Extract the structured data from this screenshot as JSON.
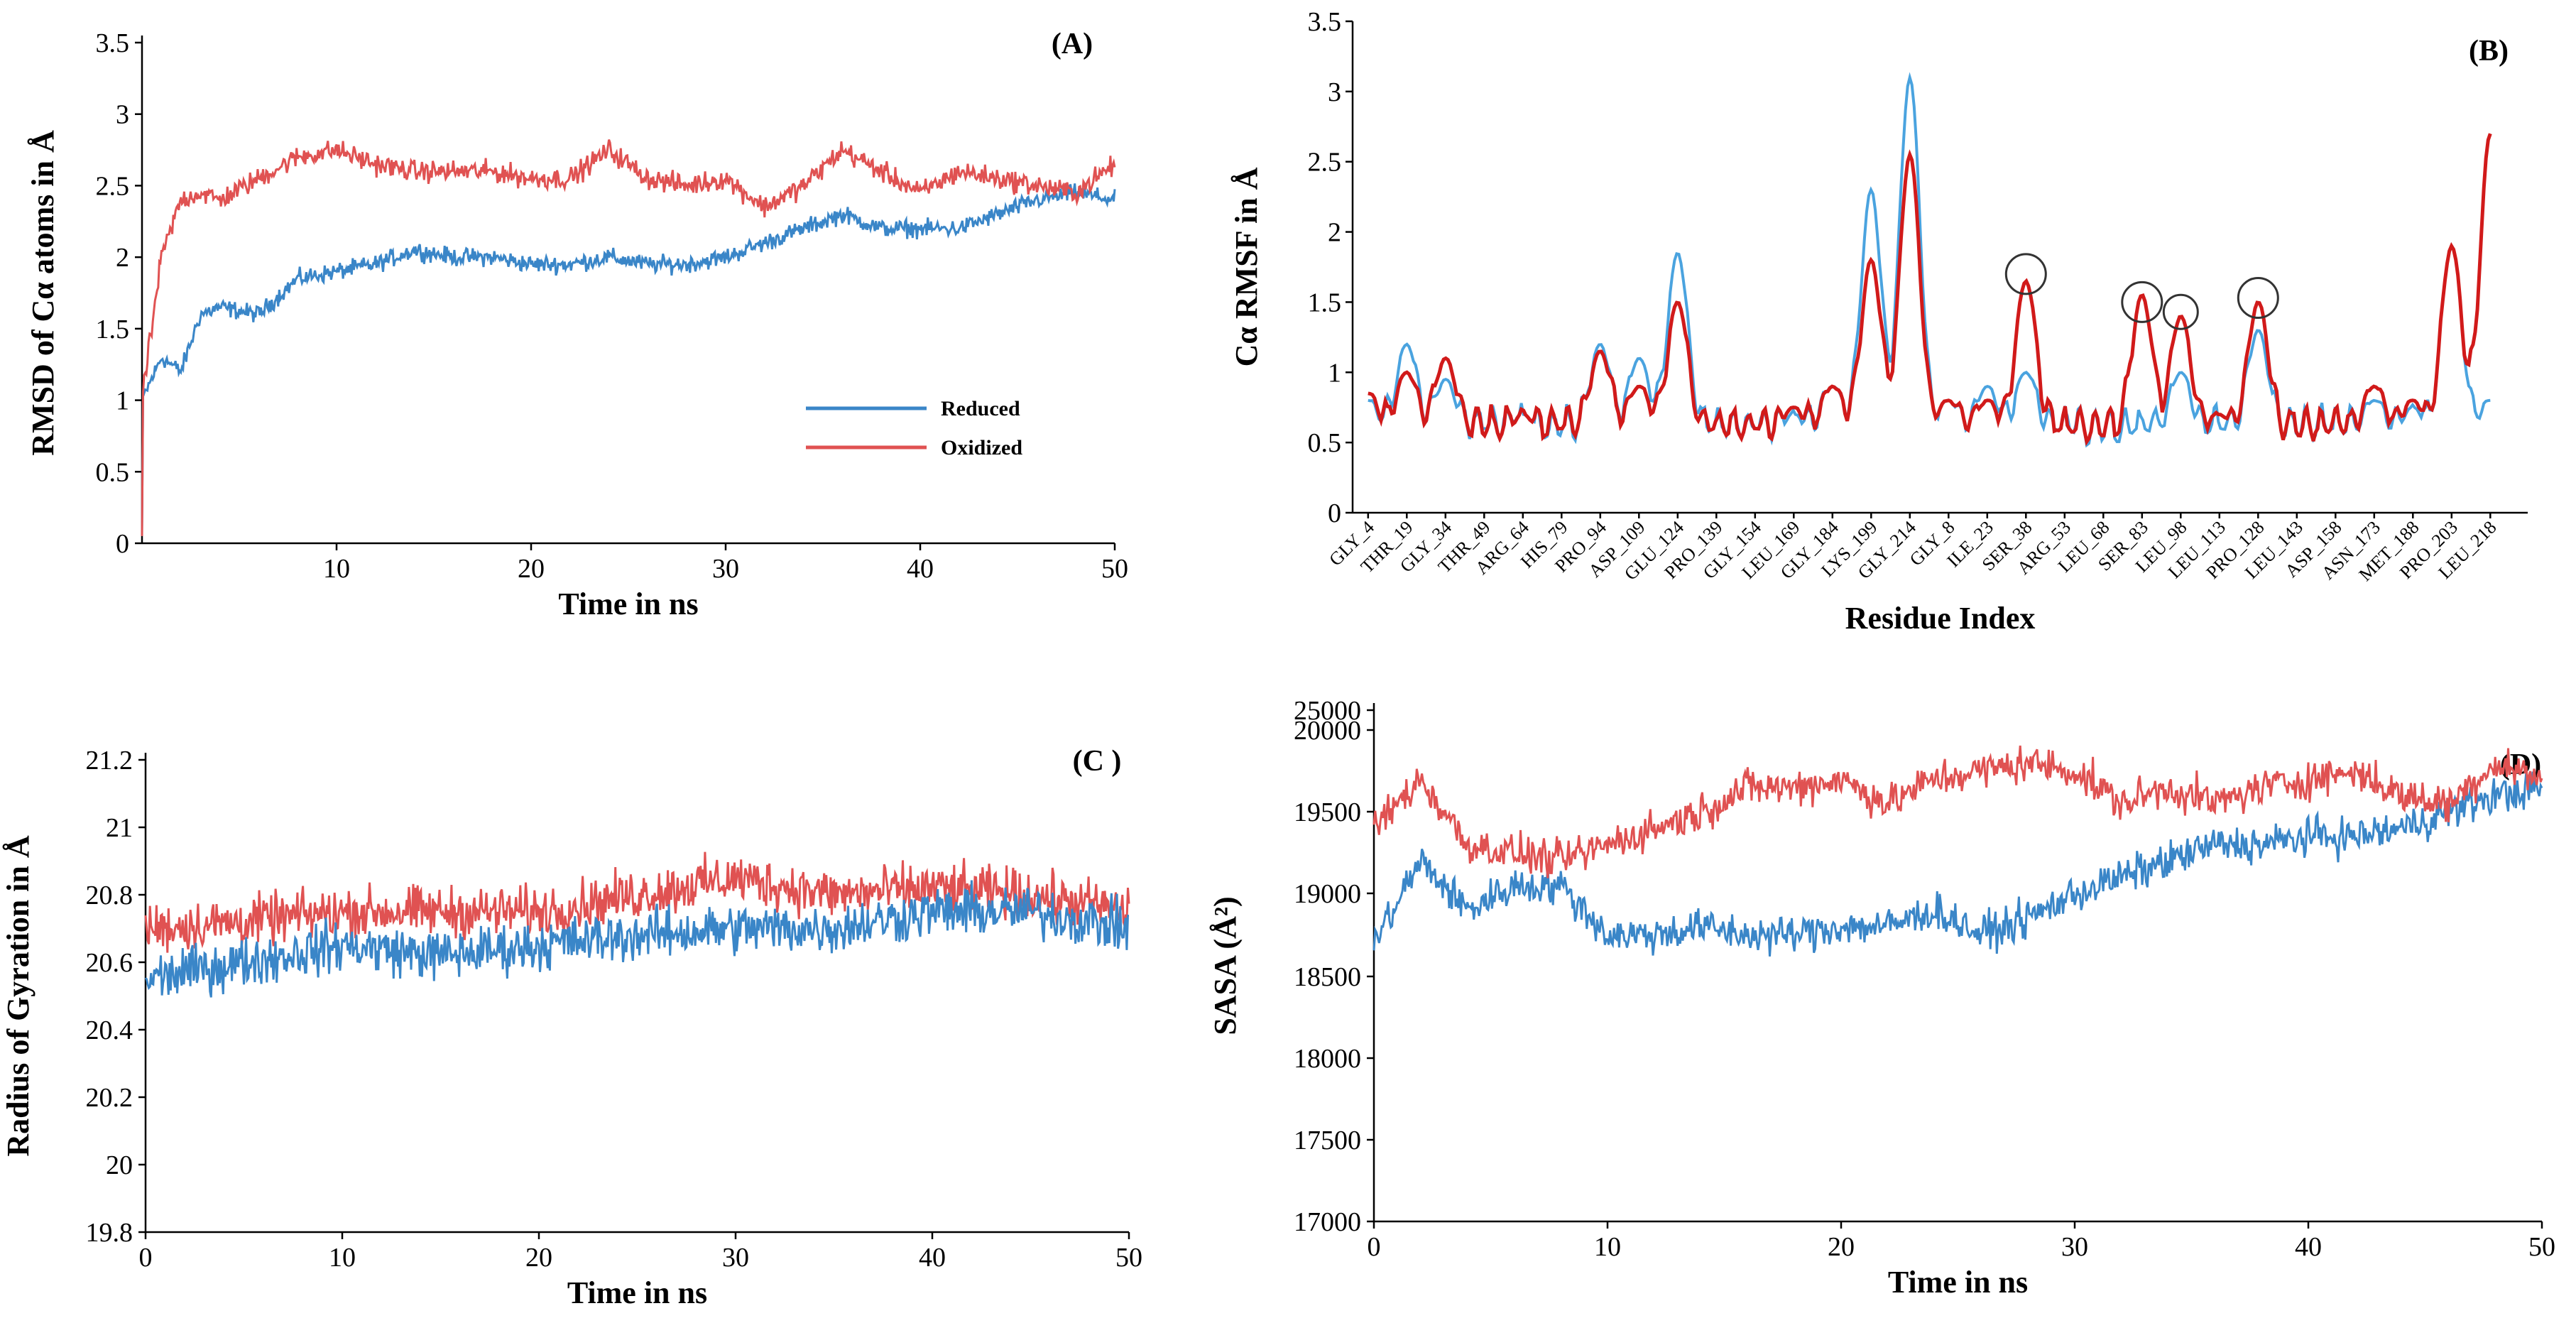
{
  "colors": {
    "reduced": "#3a86c8",
    "oxidized": "#e05252",
    "reduced_rmsf": "#4aa3df",
    "oxidized_rmsf": "#d11a1a"
  },
  "chart_data": [
    {
      "id": "A",
      "type": "line",
      "panel_label": "(A)",
      "title": "",
      "xlabel": "Time in ns",
      "ylabel": "RMSD of Cα atoms in Å",
      "xlim": [
        0,
        50
      ],
      "ylim": [
        0,
        3.5
      ],
      "xticks": [
        "10",
        "20",
        "30",
        "40",
        "50"
      ],
      "yticks": [
        "0",
        "0.5",
        "1",
        "1.5",
        "2",
        "2.5",
        "3",
        "3.5"
      ],
      "legend": [
        "Reduced",
        "Oxidized"
      ],
      "series": [
        {
          "name": "Reduced",
          "x": [
            0,
            1,
            2,
            3,
            4,
            6,
            8,
            10,
            12,
            14,
            16,
            18,
            20,
            22,
            24,
            26,
            28,
            30,
            32,
            34,
            36,
            38,
            40,
            42,
            44,
            46,
            48,
            50
          ],
          "values": [
            1.0,
            1.3,
            1.2,
            1.6,
            1.65,
            1.6,
            1.85,
            1.9,
            1.95,
            2.05,
            2.0,
            2.0,
            1.95,
            1.95,
            2.0,
            1.95,
            1.95,
            2.0,
            2.1,
            2.2,
            2.3,
            2.2,
            2.2,
            2.2,
            2.3,
            2.4,
            2.45,
            2.4
          ]
        },
        {
          "name": "Oxidized",
          "x": [
            0,
            1,
            2,
            3,
            4,
            6,
            8,
            10,
            12,
            14,
            16,
            18,
            20,
            22,
            24,
            26,
            28,
            30,
            32,
            34,
            36,
            38,
            40,
            42,
            44,
            46,
            48,
            50
          ],
          "values": [
            1.0,
            2.0,
            2.4,
            2.45,
            2.4,
            2.55,
            2.7,
            2.75,
            2.65,
            2.6,
            2.6,
            2.6,
            2.55,
            2.55,
            2.75,
            2.55,
            2.5,
            2.55,
            2.35,
            2.5,
            2.75,
            2.6,
            2.45,
            2.6,
            2.55,
            2.5,
            2.45,
            2.65
          ]
        }
      ]
    },
    {
      "id": "B",
      "type": "line",
      "panel_label": "(B)",
      "title": "",
      "xlabel": "Residue Index",
      "ylabel": "Cα RMSF in Å",
      "ylim": [
        0,
        3.5
      ],
      "yticks": [
        "0",
        "0.5",
        "1",
        "1.5",
        "2",
        "2.5",
        "3",
        "3.5"
      ],
      "categories": [
        "GLY_4",
        "THR_19",
        "GLY_34",
        "THR_49",
        "ARG_64",
        "HIS_79",
        "PRO_94",
        "ASP_109",
        "GLU_124",
        "PRO_139",
        "GLY_154",
        "LEU_169",
        "GLY_184",
        "LYS_199",
        "GLY_214",
        "GLY_8",
        "ILE_23",
        "SER_38",
        "ARG_53",
        "LEU_68",
        "SER_83",
        "LEU_98",
        "LEU_113",
        "PRO_128",
        "LEU_143",
        "ASP_158",
        "ASN_173",
        "MET_188",
        "PRO_203",
        "LEU_218"
      ],
      "series": [
        {
          "name": "Reduced",
          "values": [
            0.8,
            1.2,
            0.95,
            0.6,
            0.7,
            0.55,
            1.2,
            1.1,
            1.85,
            0.6,
            0.6,
            0.7,
            0.9,
            2.3,
            3.1,
            0.8,
            0.9,
            1.0,
            0.6,
            0.5,
            0.6,
            1.0,
            0.6,
            1.3,
            0.55,
            0.6,
            0.8,
            0.75,
            1.9,
            0.8
          ]
        },
        {
          "name": "Oxidized",
          "values": [
            0.85,
            1.0,
            1.1,
            0.55,
            0.7,
            0.6,
            1.15,
            0.9,
            1.5,
            0.6,
            0.6,
            0.75,
            0.9,
            1.8,
            2.55,
            0.8,
            0.8,
            1.65,
            0.6,
            0.55,
            1.55,
            1.4,
            0.7,
            1.5,
            0.55,
            0.6,
            0.9,
            0.8,
            1.9,
            2.7
          ]
        }
      ],
      "annotations": "circles at SER_38, SER_83, LEU_98, PRO_128 peaks"
    },
    {
      "id": "C",
      "type": "line",
      "panel_label": "(C )",
      "title": "",
      "xlabel": "Time in ns",
      "ylabel": "Radius of Gyration in Å",
      "xlim": [
        0,
        50
      ],
      "ylim": [
        19.8,
        21.2
      ],
      "xticks": [
        "0",
        "10",
        "20",
        "30",
        "40",
        "50"
      ],
      "yticks": [
        "19.8",
        "20",
        "20.2",
        "20.4",
        "20.6",
        "20.8",
        "21",
        "21.2"
      ],
      "series": [
        {
          "name": "Reduced",
          "x": [
            0,
            5,
            10,
            15,
            20,
            25,
            30,
            35,
            40,
            45,
            50
          ],
          "values": [
            20.55,
            20.6,
            20.65,
            20.62,
            20.65,
            20.68,
            20.7,
            20.7,
            20.75,
            20.75,
            20.7
          ]
        },
        {
          "name": "Oxidized",
          "x": [
            0,
            5,
            10,
            15,
            20,
            25,
            30,
            35,
            40,
            45,
            50
          ],
          "values": [
            20.7,
            20.72,
            20.75,
            20.75,
            20.75,
            20.8,
            20.85,
            20.8,
            20.82,
            20.8,
            20.75
          ]
        }
      ]
    },
    {
      "id": "D",
      "type": "line",
      "panel_label": "(D)",
      "title": "",
      "xlabel": "Time in ns",
      "ylabel": "SASA (Å²)",
      "xlim": [
        0,
        50
      ],
      "ylim": [
        17000,
        25000
      ],
      "xticks": [
        "0",
        "10",
        "20",
        "30",
        "40",
        "50"
      ],
      "yticks": [
        "17000",
        "17500",
        "18000",
        "18500",
        "19000",
        "19500",
        "20000",
        "25000"
      ],
      "series": [
        {
          "name": "Reduced",
          "x": [
            0,
            2,
            4,
            6,
            8,
            10,
            12,
            14,
            16,
            18,
            20,
            22,
            24,
            26,
            28,
            30,
            32,
            34,
            36,
            38,
            40,
            42,
            44,
            46,
            48,
            50
          ],
          "values": [
            18700,
            19200,
            18900,
            19050,
            19050,
            18750,
            18750,
            18800,
            18750,
            18750,
            18800,
            18800,
            18900,
            18750,
            18850,
            19000,
            19100,
            19200,
            19300,
            19300,
            19350,
            19350,
            19400,
            19500,
            19600,
            19650
          ]
        },
        {
          "name": "Oxidized",
          "x": [
            0,
            2,
            4,
            6,
            8,
            10,
            12,
            14,
            16,
            18,
            20,
            22,
            24,
            26,
            28,
            30,
            32,
            34,
            36,
            38,
            40,
            42,
            44,
            46,
            48,
            50
          ],
          "values": [
            19400,
            19700,
            19300,
            19250,
            19200,
            19300,
            19400,
            19500,
            19650,
            19650,
            19700,
            19550,
            19700,
            19750,
            19800,
            19750,
            19550,
            19650,
            19550,
            19650,
            19700,
            19750,
            19600,
            19550,
            19800,
            19700
          ]
        }
      ]
    }
  ],
  "legend_A": {
    "reduced_label": "Reduced",
    "oxidized_label": "Oxidized"
  }
}
